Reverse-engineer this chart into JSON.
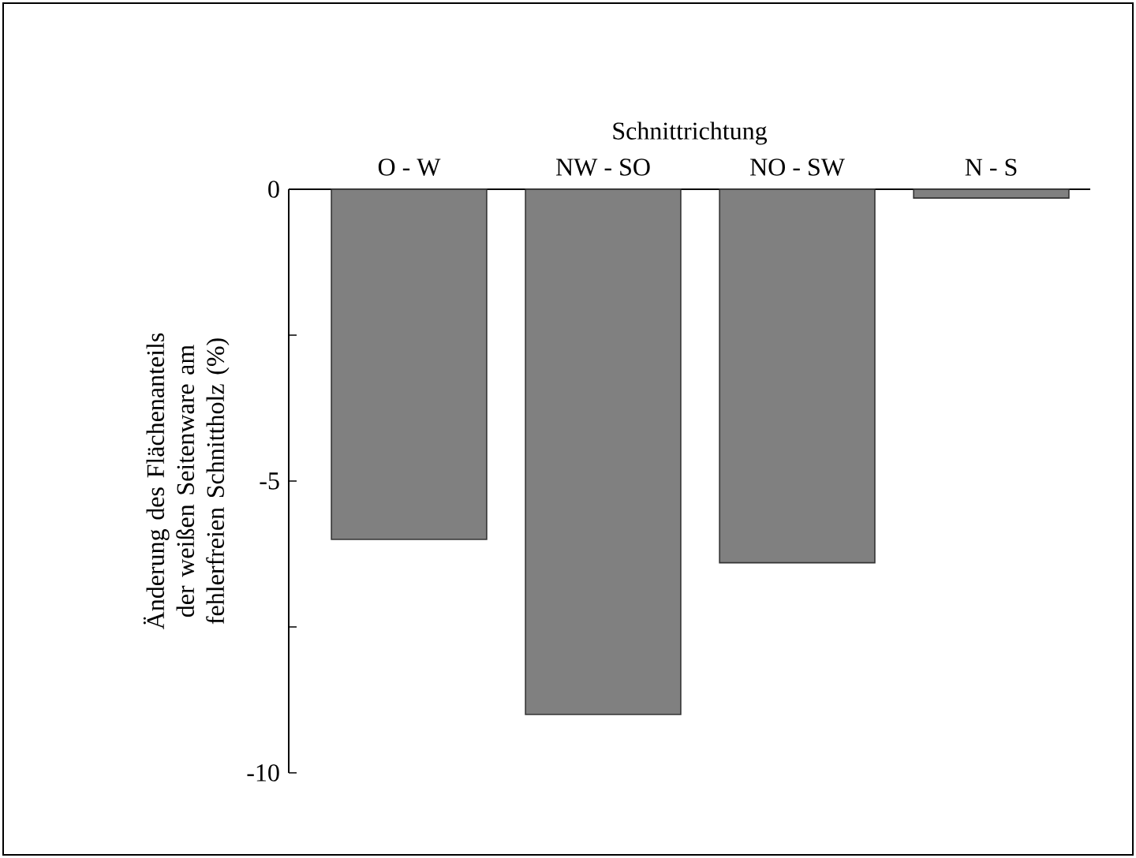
{
  "chart_data": {
    "type": "bar",
    "xlabel": "Schnittrichtung",
    "ylabel": "Änderung des Flächenanteils der weißen Seitenware am fehlerfreien Schnittholz (%)",
    "categories": [
      "O - W",
      "NW - SO",
      "NO - SW",
      "N - S"
    ],
    "values": [
      -6.0,
      -9.0,
      -6.4,
      -0.15
    ],
    "color": "#808080",
    "ylim": [
      -10,
      0
    ],
    "yticks": [
      {
        "value": -10,
        "label": "-10"
      },
      {
        "value": -7.5,
        "label": null
      },
      {
        "value": -5,
        "label": "-5"
      },
      {
        "value": -2.5,
        "label": null
      },
      {
        "value": 0,
        "label": "0"
      }
    ]
  }
}
